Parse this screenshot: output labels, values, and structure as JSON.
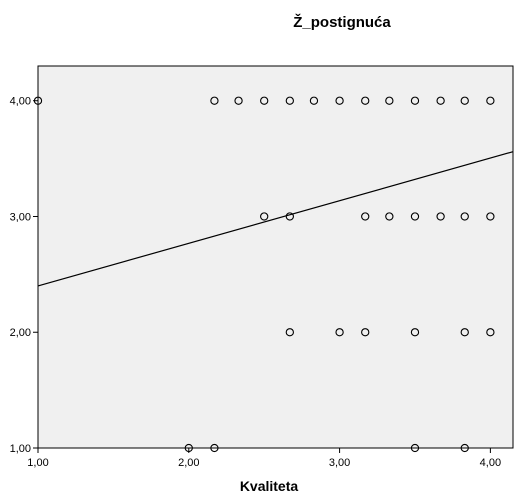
{
  "chart_data": {
    "type": "scatter",
    "title": "Ž_postignuća",
    "xlabel": "Kvaliteta",
    "ylabel": "",
    "xlim": [
      1.0,
      4.15
    ],
    "ylim": [
      1.0,
      4.3
    ],
    "x_ticks": [
      "1,00",
      "2,00",
      "3,00",
      "4,00"
    ],
    "x_tick_values": [
      1,
      2,
      3,
      4
    ],
    "y_ticks": [
      "1,00",
      "2,00",
      "3,00",
      "4,00"
    ],
    "y_tick_values": [
      1,
      2,
      3,
      4
    ],
    "grid": false,
    "plot_background": "#f0f0f0",
    "marker": "open-circle",
    "points": [
      {
        "x": 1.0,
        "y": 4
      },
      {
        "x": 2.17,
        "y": 4
      },
      {
        "x": 2.33,
        "y": 4
      },
      {
        "x": 2.5,
        "y": 4
      },
      {
        "x": 2.67,
        "y": 4
      },
      {
        "x": 2.83,
        "y": 4
      },
      {
        "x": 3.0,
        "y": 4
      },
      {
        "x": 3.17,
        "y": 4
      },
      {
        "x": 3.33,
        "y": 4
      },
      {
        "x": 3.5,
        "y": 4
      },
      {
        "x": 3.67,
        "y": 4
      },
      {
        "x": 3.83,
        "y": 4
      },
      {
        "x": 4.0,
        "y": 4
      },
      {
        "x": 2.5,
        "y": 3
      },
      {
        "x": 2.67,
        "y": 3
      },
      {
        "x": 3.17,
        "y": 3
      },
      {
        "x": 3.33,
        "y": 3
      },
      {
        "x": 3.5,
        "y": 3
      },
      {
        "x": 3.67,
        "y": 3
      },
      {
        "x": 3.83,
        "y": 3
      },
      {
        "x": 4.0,
        "y": 3
      },
      {
        "x": 2.67,
        "y": 2
      },
      {
        "x": 3.0,
        "y": 2
      },
      {
        "x": 3.17,
        "y": 2
      },
      {
        "x": 3.5,
        "y": 2
      },
      {
        "x": 3.83,
        "y": 2
      },
      {
        "x": 4.0,
        "y": 2
      },
      {
        "x": 2.0,
        "y": 1
      },
      {
        "x": 2.17,
        "y": 1
      },
      {
        "x": 3.5,
        "y": 1
      },
      {
        "x": 3.83,
        "y": 1
      }
    ],
    "fit_line": {
      "x": [
        1.0,
        4.15
      ],
      "y": [
        2.4,
        3.56
      ]
    }
  }
}
